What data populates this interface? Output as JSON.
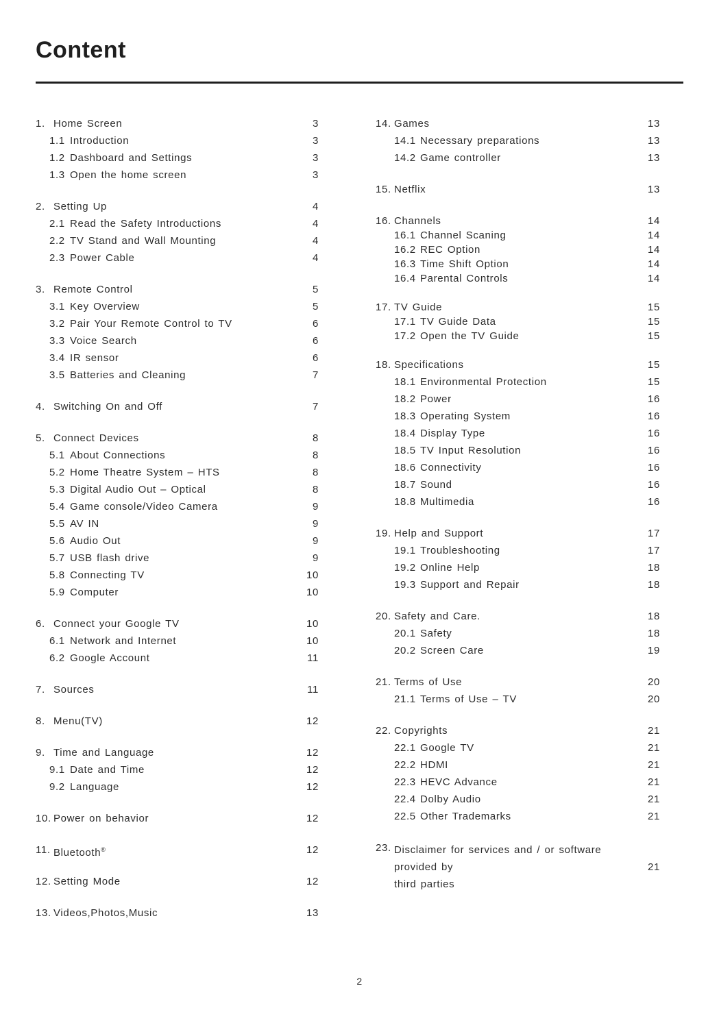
{
  "page": {
    "title": "Content",
    "footer_page_number": "2"
  },
  "colors": {
    "text": "#2c2c2c",
    "rule": "#1e1e1e",
    "background": "#ffffff"
  },
  "toc": {
    "columns": [
      {
        "sections": [
          {
            "number": "1.",
            "title": "Home Screen",
            "page": "3",
            "items": [
              {
                "number": "1.1",
                "label": "Introduction",
                "page": "3"
              },
              {
                "number": "1.2",
                "label": "Dashboard and Settings",
                "page": "3"
              },
              {
                "number": "1.3",
                "label": "Open the home screen",
                "page": "3"
              }
            ]
          },
          {
            "number": "2.",
            "title": "Setting Up",
            "page": "4",
            "items": [
              {
                "number": "2.1",
                "label": "Read the Safety Introductions",
                "page": "4"
              },
              {
                "number": "2.2",
                "label": "TV Stand and Wall Mounting",
                "page": "4"
              },
              {
                "number": "2.3",
                "label": "Power Cable",
                "page": "4"
              }
            ]
          },
          {
            "number": "3.",
            "title": "Remote Control",
            "page": "5",
            "items": [
              {
                "number": "3.1",
                "label": "Key Overview",
                "page": "5"
              },
              {
                "number": "3.2",
                "label": "Pair Your Remote Control to TV",
                "page": "6"
              },
              {
                "number": "3.3",
                "label": "Voice Search",
                "page": "6"
              },
              {
                "number": "3.4",
                "label": "IR sensor",
                "page": "6"
              },
              {
                "number": "3.5",
                "label": "Batteries and Cleaning",
                "page": "7"
              }
            ]
          },
          {
            "number": "4.",
            "title": "Switching On and Off",
            "page": "7",
            "items": []
          },
          {
            "number": "5.",
            "title": "Connect Devices",
            "page": "8",
            "items": [
              {
                "number": "5.1",
                "label": "About Connections",
                "page": "8"
              },
              {
                "number": "5.2",
                "label": "Home Theatre System – HTS",
                "page": "8"
              },
              {
                "number": "5.3",
                "label": "Digital Audio Out – Optical",
                "page": "8"
              },
              {
                "number": "5.4",
                "label": "Game console/Video Camera",
                "page": "9"
              },
              {
                "number": "5.5",
                "label": "AV IN",
                "page": "9"
              },
              {
                "number": "5.6",
                "label": "Audio Out",
                "page": "9"
              },
              {
                "number": "5.7",
                "label": "USB flash drive",
                "page": "9"
              },
              {
                "number": "5.8",
                "label": "Connecting TV",
                "page": "10"
              },
              {
                "number": "5.9",
                "label": "Computer",
                "page": "10"
              }
            ]
          },
          {
            "number": "6.",
            "title": "Connect your Google TV",
            "page": "10",
            "items": [
              {
                "number": "6.1",
                "label": "Network and Internet",
                "page": "10"
              },
              {
                "number": "6.2",
                "label": "Google Account",
                "page": "11"
              }
            ]
          },
          {
            "number": "7.",
            "title": "Sources",
            "page": "11",
            "items": []
          },
          {
            "number": "8.",
            "title": "Menu(TV)",
            "page": "12",
            "items": []
          },
          {
            "number": "9.",
            "title": "Time and Language",
            "page": "12",
            "items": [
              {
                "number": "9.1",
                "label": "Date and Time",
                "page": "12"
              },
              {
                "number": "9.2",
                "label": "Language",
                "page": "12"
              }
            ]
          },
          {
            "number": "10.",
            "title": "Power on behavior",
            "page": "12",
            "items": []
          },
          {
            "number": "11.",
            "title": "Bluetooth",
            "sup": "®",
            "page": "12",
            "items": []
          },
          {
            "number": "12.",
            "title": "Setting Mode",
            "page": "12",
            "items": []
          },
          {
            "number": "13.",
            "title": "Videos,Photos,Music",
            "page": "13",
            "items": []
          }
        ]
      },
      {
        "sections": [
          {
            "number": "14.",
            "title": "Games",
            "page": "13",
            "items": [
              {
                "number": "14.1",
                "label": "Necessary preparations",
                "page": "13"
              },
              {
                "number": "14.2",
                "label": "Game controller",
                "page": "13"
              }
            ]
          },
          {
            "number": "15.",
            "title": "Netflix",
            "page": "13",
            "items": []
          },
          {
            "number": "16.",
            "title": "Channels",
            "page": "14",
            "tight": true,
            "items": [
              {
                "number": "16.1",
                "label": "Channel Scaning",
                "page": "14"
              },
              {
                "number": "16.2",
                "label": "REC Option",
                "page": "14"
              },
              {
                "number": "16.3",
                "label": "Time Shift Option",
                "page": "14"
              },
              {
                "number": "16.4",
                "label": "Parental Controls",
                "page": "14"
              }
            ]
          },
          {
            "number": "17.",
            "title": "TV Guide",
            "page": "15",
            "tight": true,
            "items": [
              {
                "number": "17.1",
                "label": "TV Guide Data",
                "page": "15"
              },
              {
                "number": "17.2",
                "label": "Open the TV Guide",
                "page": "15"
              }
            ]
          },
          {
            "number": "18.",
            "title": "Specifications",
            "page": "15",
            "items": [
              {
                "number": "18.1",
                "label": "Environmental Protection",
                "page": "15"
              },
              {
                "number": "18.2",
                "label": "Power",
                "page": "16"
              },
              {
                "number": "18.3",
                "label": "Operating System",
                "page": "16"
              },
              {
                "number": "18.4",
                "label": "Display Type",
                "page": "16"
              },
              {
                "number": "18.5",
                "label": "TV Input Resolution",
                "page": "16"
              },
              {
                "number": "18.6",
                "label": "Connectivity",
                "page": "16"
              },
              {
                "number": "18.7",
                "label": "Sound",
                "page": "16"
              },
              {
                "number": "18.8",
                "label": "Multimedia",
                "page": "16"
              }
            ]
          },
          {
            "number": "19.",
            "title": "Help and Support",
            "page": "17",
            "items": [
              {
                "number": "19.1",
                "label": "Troubleshooting",
                "page": "17"
              },
              {
                "number": "19.2",
                "label": "Online Help",
                "page": "18"
              },
              {
                "number": "19.3",
                "label": "Support and Repair",
                "page": "18"
              }
            ]
          },
          {
            "number": "20.",
            "title": "Safety and Care.",
            "page": "18",
            "items": [
              {
                "number": "20.1",
                "label": "Safety",
                "page": "18"
              },
              {
                "number": "20.2",
                "label": "Screen Care",
                "page": "19"
              }
            ]
          },
          {
            "number": "21.",
            "title": "Terms of Use",
            "page": "20",
            "items": [
              {
                "number": "21.1",
                "label": "Terms of Use – TV",
                "page": "20"
              }
            ]
          },
          {
            "number": "22.",
            "title": "Copyrights",
            "page": "21",
            "items": [
              {
                "number": "22.1",
                "label": "Google TV",
                "page": "21"
              },
              {
                "number": "22.2",
                "label": "HDMI",
                "page": "21"
              },
              {
                "number": "22.3",
                "label": "HEVC Advance",
                "page": "21"
              },
              {
                "number": "22.4",
                "label": "Dolby Audio",
                "page": "21"
              },
              {
                "number": "22.5",
                "label": "Other Trademarks",
                "page": "21"
              }
            ]
          },
          {
            "number": "23.",
            "title": "Disclaimer for services and / or software provided by",
            "title2": "third parties",
            "page": "21",
            "items": []
          }
        ]
      }
    ]
  }
}
